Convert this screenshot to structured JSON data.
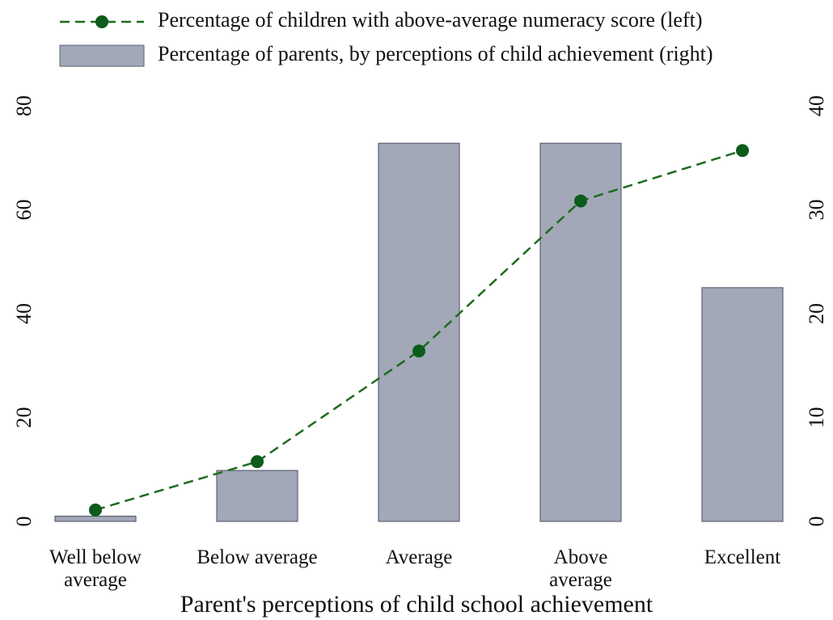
{
  "chart_data": {
    "type": "bar",
    "x_label": "Parent's perceptions of child school achievement",
    "categories": [
      "Well below average",
      "Below average",
      "Average",
      "Above average",
      "Excellent"
    ],
    "series": [
      {
        "name": "Percentage of children with above-average numeracy score (left)",
        "type": "line",
        "color": "#1e6b1e",
        "values": [
          2.2,
          11.5,
          32.8,
          61.7,
          71.4
        ]
      },
      {
        "name": "Percentage of parents, by perceptions of child achievement (right)",
        "type": "bar",
        "axis": "y2",
        "color": "#a3a8b8",
        "values": [
          0.5,
          4.9,
          36.4,
          36.4,
          22.5
        ]
      }
    ],
    "ylim": [
      0,
      80
    ],
    "yticks": [
      0,
      20,
      40,
      60,
      80
    ],
    "y2lim": [
      0,
      40
    ],
    "y2ticks": [
      0,
      10,
      20,
      30,
      40
    ]
  }
}
